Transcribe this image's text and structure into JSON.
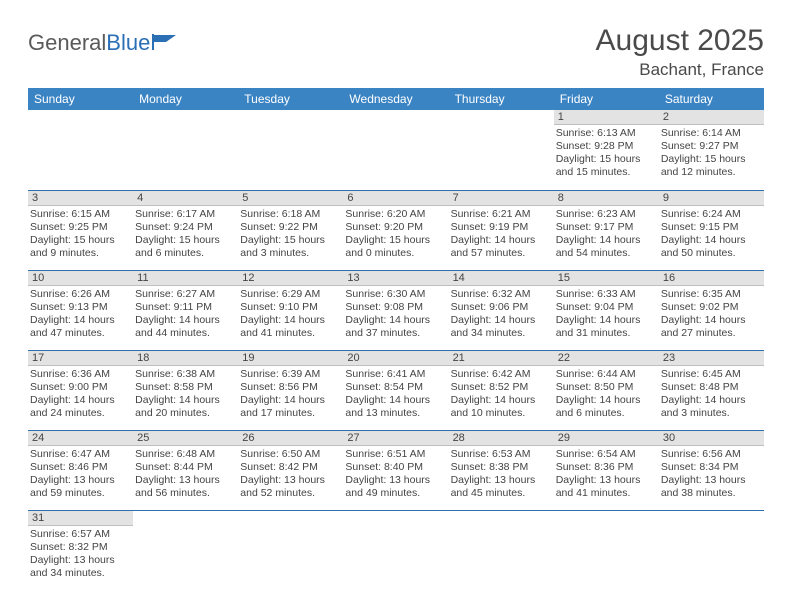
{
  "logo": {
    "word1": "General",
    "word2": "Blue"
  },
  "title": "August 2025",
  "location": "Bachant, France",
  "colors": {
    "header_bg": "#3b84c4",
    "header_text": "#ffffff",
    "daynum_bg": "#e3e3e3",
    "row_border": "#2f6fae",
    "text": "#444444",
    "logo_gray": "#5a5a5a",
    "logo_blue": "#2b6fb5"
  },
  "weekdays": [
    "Sunday",
    "Monday",
    "Tuesday",
    "Wednesday",
    "Thursday",
    "Friday",
    "Saturday"
  ],
  "weeks": [
    [
      null,
      null,
      null,
      null,
      null,
      {
        "n": "1",
        "sr": "Sunrise: 6:13 AM",
        "ss": "Sunset: 9:28 PM",
        "dl": "Daylight: 15 hours and 15 minutes."
      },
      {
        "n": "2",
        "sr": "Sunrise: 6:14 AM",
        "ss": "Sunset: 9:27 PM",
        "dl": "Daylight: 15 hours and 12 minutes."
      }
    ],
    [
      {
        "n": "3",
        "sr": "Sunrise: 6:15 AM",
        "ss": "Sunset: 9:25 PM",
        "dl": "Daylight: 15 hours and 9 minutes."
      },
      {
        "n": "4",
        "sr": "Sunrise: 6:17 AM",
        "ss": "Sunset: 9:24 PM",
        "dl": "Daylight: 15 hours and 6 minutes."
      },
      {
        "n": "5",
        "sr": "Sunrise: 6:18 AM",
        "ss": "Sunset: 9:22 PM",
        "dl": "Daylight: 15 hours and 3 minutes."
      },
      {
        "n": "6",
        "sr": "Sunrise: 6:20 AM",
        "ss": "Sunset: 9:20 PM",
        "dl": "Daylight: 15 hours and 0 minutes."
      },
      {
        "n": "7",
        "sr": "Sunrise: 6:21 AM",
        "ss": "Sunset: 9:19 PM",
        "dl": "Daylight: 14 hours and 57 minutes."
      },
      {
        "n": "8",
        "sr": "Sunrise: 6:23 AM",
        "ss": "Sunset: 9:17 PM",
        "dl": "Daylight: 14 hours and 54 minutes."
      },
      {
        "n": "9",
        "sr": "Sunrise: 6:24 AM",
        "ss": "Sunset: 9:15 PM",
        "dl": "Daylight: 14 hours and 50 minutes."
      }
    ],
    [
      {
        "n": "10",
        "sr": "Sunrise: 6:26 AM",
        "ss": "Sunset: 9:13 PM",
        "dl": "Daylight: 14 hours and 47 minutes."
      },
      {
        "n": "11",
        "sr": "Sunrise: 6:27 AM",
        "ss": "Sunset: 9:11 PM",
        "dl": "Daylight: 14 hours and 44 minutes."
      },
      {
        "n": "12",
        "sr": "Sunrise: 6:29 AM",
        "ss": "Sunset: 9:10 PM",
        "dl": "Daylight: 14 hours and 41 minutes."
      },
      {
        "n": "13",
        "sr": "Sunrise: 6:30 AM",
        "ss": "Sunset: 9:08 PM",
        "dl": "Daylight: 14 hours and 37 minutes."
      },
      {
        "n": "14",
        "sr": "Sunrise: 6:32 AM",
        "ss": "Sunset: 9:06 PM",
        "dl": "Daylight: 14 hours and 34 minutes."
      },
      {
        "n": "15",
        "sr": "Sunrise: 6:33 AM",
        "ss": "Sunset: 9:04 PM",
        "dl": "Daylight: 14 hours and 31 minutes."
      },
      {
        "n": "16",
        "sr": "Sunrise: 6:35 AM",
        "ss": "Sunset: 9:02 PM",
        "dl": "Daylight: 14 hours and 27 minutes."
      }
    ],
    [
      {
        "n": "17",
        "sr": "Sunrise: 6:36 AM",
        "ss": "Sunset: 9:00 PM",
        "dl": "Daylight: 14 hours and 24 minutes."
      },
      {
        "n": "18",
        "sr": "Sunrise: 6:38 AM",
        "ss": "Sunset: 8:58 PM",
        "dl": "Daylight: 14 hours and 20 minutes."
      },
      {
        "n": "19",
        "sr": "Sunrise: 6:39 AM",
        "ss": "Sunset: 8:56 PM",
        "dl": "Daylight: 14 hours and 17 minutes."
      },
      {
        "n": "20",
        "sr": "Sunrise: 6:41 AM",
        "ss": "Sunset: 8:54 PM",
        "dl": "Daylight: 14 hours and 13 minutes."
      },
      {
        "n": "21",
        "sr": "Sunrise: 6:42 AM",
        "ss": "Sunset: 8:52 PM",
        "dl": "Daylight: 14 hours and 10 minutes."
      },
      {
        "n": "22",
        "sr": "Sunrise: 6:44 AM",
        "ss": "Sunset: 8:50 PM",
        "dl": "Daylight: 14 hours and 6 minutes."
      },
      {
        "n": "23",
        "sr": "Sunrise: 6:45 AM",
        "ss": "Sunset: 8:48 PM",
        "dl": "Daylight: 14 hours and 3 minutes."
      }
    ],
    [
      {
        "n": "24",
        "sr": "Sunrise: 6:47 AM",
        "ss": "Sunset: 8:46 PM",
        "dl": "Daylight: 13 hours and 59 minutes."
      },
      {
        "n": "25",
        "sr": "Sunrise: 6:48 AM",
        "ss": "Sunset: 8:44 PM",
        "dl": "Daylight: 13 hours and 56 minutes."
      },
      {
        "n": "26",
        "sr": "Sunrise: 6:50 AM",
        "ss": "Sunset: 8:42 PM",
        "dl": "Daylight: 13 hours and 52 minutes."
      },
      {
        "n": "27",
        "sr": "Sunrise: 6:51 AM",
        "ss": "Sunset: 8:40 PM",
        "dl": "Daylight: 13 hours and 49 minutes."
      },
      {
        "n": "28",
        "sr": "Sunrise: 6:53 AM",
        "ss": "Sunset: 8:38 PM",
        "dl": "Daylight: 13 hours and 45 minutes."
      },
      {
        "n": "29",
        "sr": "Sunrise: 6:54 AM",
        "ss": "Sunset: 8:36 PM",
        "dl": "Daylight: 13 hours and 41 minutes."
      },
      {
        "n": "30",
        "sr": "Sunrise: 6:56 AM",
        "ss": "Sunset: 8:34 PM",
        "dl": "Daylight: 13 hours and 38 minutes."
      }
    ],
    [
      {
        "n": "31",
        "sr": "Sunrise: 6:57 AM",
        "ss": "Sunset: 8:32 PM",
        "dl": "Daylight: 13 hours and 34 minutes."
      },
      null,
      null,
      null,
      null,
      null,
      null
    ]
  ]
}
